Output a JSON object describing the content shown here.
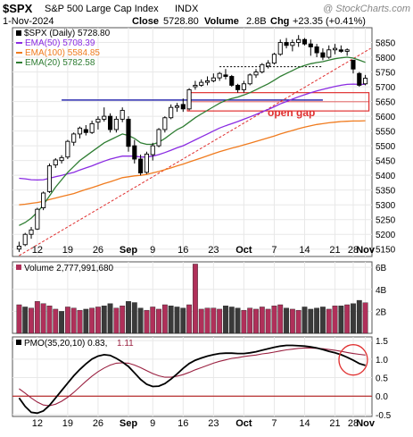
{
  "header": {
    "symbol": "$SPX",
    "name": "S&P 500 Large Cap Index",
    "exchange": "INDX",
    "watermark": "@ StockCharts.com",
    "date": "1-Nov-2024",
    "close_label": "Close",
    "close_value": "5728.80",
    "volume_label": "Volume",
    "volume_value": "2.8B",
    "chg_label": "Chg",
    "chg_value": "+23.35 (+0.41%)"
  },
  "legend": {
    "price": "$SPX (Daily) 5728.80",
    "ema50": "EMA(50) 5708.39",
    "ema100": "EMA(100) 5584.85",
    "ema20": "EMA(20) 5782.58"
  },
  "annotations": {
    "gap": "open gap"
  },
  "volume_panel": {
    "label": "Volume 2,777,991,680"
  },
  "pmo_panel": {
    "label": "PMO(35,20,10) 0.83,",
    "signal_value": "1.11"
  },
  "colors": {
    "up": "#000000",
    "down": "#000000",
    "candle_up_fill": "#ffffff",
    "candle_down_fill": "#000000",
    "ema20": "#2e7d32",
    "ema50": "#8a2be2",
    "ema100": "#f07b1e",
    "trend": "#e03030",
    "gap_box": "#e03030",
    "support": "#1a1aa8",
    "volume_bar": "#b0305a",
    "volume_bar_alt": "#3a3a3a",
    "pmo": "#000000",
    "pmo_signal": "#9a2040",
    "axis": "#666666",
    "grid": "#e8e8e8",
    "panel_bg": "#ffffff"
  },
  "chart_data": {
    "type": "candlestick",
    "x_tick_labels": [
      "12",
      "19",
      "26",
      "Sep",
      "9",
      "16",
      "23",
      "Oct",
      "7",
      "14",
      "21",
      "28",
      "Nov"
    ],
    "price_axis": {
      "ylim": [
        5125,
        5900
      ],
      "ticks": [
        5150,
        5200,
        5250,
        5300,
        5350,
        5400,
        5450,
        5500,
        5550,
        5600,
        5650,
        5700,
        5750,
        5800,
        5850
      ]
    },
    "volume_axis": {
      "ylim": [
        0,
        6.5
      ],
      "ticks": [
        "2B",
        "4B",
        "6B"
      ],
      "tick_values": [
        2,
        4,
        6
      ]
    },
    "pmo_axis": {
      "ylim": [
        -0.55,
        1.6
      ],
      "ticks": [
        "-0.5",
        "0.0",
        "0.5",
        "1.0",
        "1.5"
      ],
      "tick_values": [
        -0.5,
        0.0,
        0.5,
        1.0,
        1.5
      ]
    },
    "ohlc": [
      [
        5150,
        5175,
        5140,
        5160
      ],
      [
        5165,
        5205,
        5160,
        5200
      ],
      [
        5200,
        5225,
        5185,
        5215
      ],
      [
        5218,
        5290,
        5215,
        5285
      ],
      [
        5290,
        5345,
        5282,
        5340
      ],
      [
        5345,
        5440,
        5340,
        5432
      ],
      [
        5435,
        5458,
        5425,
        5452
      ],
      [
        5450,
        5468,
        5440,
        5460
      ],
      [
        5462,
        5520,
        5455,
        5515
      ],
      [
        5512,
        5545,
        5500,
        5540
      ],
      [
        5540,
        5565,
        5525,
        5560
      ],
      [
        5555,
        5570,
        5535,
        5545
      ],
      [
        5545,
        5585,
        5540,
        5575
      ],
      [
        5580,
        5600,
        5555,
        5590
      ],
      [
        5590,
        5630,
        5582,
        5600
      ],
      [
        5600,
        5610,
        5545,
        5555
      ],
      [
        5555,
        5600,
        5545,
        5590
      ],
      [
        5590,
        5630,
        5580,
        5620
      ],
      [
        5590,
        5600,
        5480,
        5498
      ],
      [
        5500,
        5520,
        5440,
        5455
      ],
      [
        5455,
        5470,
        5400,
        5408
      ],
      [
        5410,
        5480,
        5405,
        5472
      ],
      [
        5470,
        5510,
        5450,
        5500
      ],
      [
        5500,
        5560,
        5495,
        5555
      ],
      [
        5555,
        5600,
        5545,
        5595
      ],
      [
        5595,
        5640,
        5590,
        5630
      ],
      [
        5630,
        5645,
        5615,
        5635
      ],
      [
        5640,
        5660,
        5615,
        5625
      ],
      [
        5625,
        5695,
        5620,
        5690
      ],
      [
        5700,
        5720,
        5690,
        5705
      ],
      [
        5705,
        5725,
        5700,
        5715
      ],
      [
        5715,
        5735,
        5705,
        5720
      ],
      [
        5720,
        5745,
        5715,
        5730
      ],
      [
        5730,
        5750,
        5720,
        5745
      ],
      [
        5740,
        5760,
        5725,
        5735
      ],
      [
        5735,
        5740,
        5700,
        5705
      ],
      [
        5705,
        5710,
        5680,
        5690
      ],
      [
        5690,
        5720,
        5680,
        5710
      ],
      [
        5710,
        5745,
        5705,
        5740
      ],
      [
        5740,
        5760,
        5730,
        5750
      ],
      [
        5750,
        5780,
        5745,
        5775
      ],
      [
        5770,
        5790,
        5762,
        5780
      ],
      [
        5780,
        5815,
        5775,
        5810
      ],
      [
        5810,
        5860,
        5805,
        5850
      ],
      [
        5850,
        5865,
        5830,
        5840
      ],
      [
        5840,
        5860,
        5820,
        5850
      ],
      [
        5850,
        5875,
        5835,
        5860
      ],
      [
        5860,
        5865,
        5840,
        5845
      ],
      [
        5845,
        5860,
        5805,
        5835
      ],
      [
        5835,
        5845,
        5800,
        5815
      ],
      [
        5815,
        5830,
        5790,
        5800
      ],
      [
        5800,
        5840,
        5795,
        5825
      ],
      [
        5825,
        5845,
        5810,
        5830
      ],
      [
        5825,
        5840,
        5815,
        5820
      ],
      [
        5820,
        5830,
        5805,
        5825
      ],
      [
        5790,
        5790,
        5745,
        5760
      ],
      [
        5745,
        5750,
        5700,
        5705
      ],
      [
        5710,
        5740,
        5705,
        5728.8
      ]
    ],
    "ema20": [
      5230,
      5240,
      5255,
      5275,
      5300,
      5330,
      5360,
      5385,
      5410,
      5430,
      5450,
      5465,
      5480,
      5495,
      5510,
      5520,
      5530,
      5540,
      5535,
      5525,
      5510,
      5505,
      5505,
      5512,
      5525,
      5540,
      5555,
      5565,
      5580,
      5595,
      5608,
      5620,
      5632,
      5644,
      5654,
      5660,
      5665,
      5672,
      5680,
      5690,
      5700,
      5710,
      5722,
      5735,
      5745,
      5755,
      5765,
      5772,
      5778,
      5782,
      5785,
      5790,
      5795,
      5798,
      5800,
      5797,
      5790,
      5782.58
    ],
    "ema50": [
      5390,
      5388,
      5385,
      5384,
      5385,
      5390,
      5395,
      5400,
      5405,
      5410,
      5418,
      5425,
      5432,
      5440,
      5448,
      5455,
      5460,
      5465,
      5465,
      5465,
      5462,
      5462,
      5465,
      5470,
      5477,
      5485,
      5493,
      5500,
      5510,
      5520,
      5530,
      5540,
      5550,
      5560,
      5568,
      5575,
      5582,
      5590,
      5598,
      5606,
      5615,
      5623,
      5632,
      5642,
      5650,
      5658,
      5666,
      5673,
      5680,
      5686,
      5691,
      5696,
      5701,
      5705,
      5708,
      5709,
      5708,
      5708.39
    ],
    "ema100": [
      5300,
      5302,
      5305,
      5308,
      5312,
      5318,
      5323,
      5328,
      5333,
      5338,
      5345,
      5352,
      5358,
      5365,
      5372,
      5378,
      5385,
      5392,
      5395,
      5398,
      5400,
      5403,
      5408,
      5413,
      5419,
      5425,
      5432,
      5438,
      5445,
      5452,
      5459,
      5466,
      5473,
      5480,
      5486,
      5492,
      5497,
      5503,
      5509,
      5515,
      5521,
      5527,
      5533,
      5540,
      5546,
      5552,
      5558,
      5563,
      5568,
      5572,
      5575,
      5578,
      5580,
      5582,
      5583,
      5584,
      5584,
      5584.85
    ],
    "trendline": {
      "from": [
        0,
        5128
      ],
      "to": [
        57,
        5830
      ]
    },
    "support_line": {
      "from": [
        7,
        5655
      ],
      "to": [
        50,
        5655
      ]
    },
    "resistance_line": {
      "from": [
        33,
        5768
      ],
      "to": [
        50,
        5768
      ]
    },
    "gap_box": {
      "from_index": 28,
      "to_index": 57,
      "y1": 5618,
      "y2": 5680
    },
    "volume": [
      2.6,
      2.4,
      2.3,
      2.9,
      2.7,
      2.5,
      2.2,
      2.0,
      2.4,
      2.3,
      2.1,
      2.2,
      2.3,
      2.4,
      2.5,
      2.7,
      2.3,
      2.5,
      2.9,
      2.8,
      2.3,
      2.1,
      2.4,
      2.2,
      2.6,
      2.5,
      2.4,
      2.3,
      2.6,
      6.3,
      2.2,
      2.3,
      2.3,
      2.2,
      2.5,
      2.4,
      2.3,
      2.1,
      2.3,
      2.2,
      2.4,
      2.2,
      2.5,
      2.6,
      2.3,
      2.2,
      2.1,
      2.4,
      2.2,
      2.3,
      2.4,
      2.2,
      2.5,
      2.5,
      2.6,
      2.7,
      3.0,
      2.78
    ],
    "volume_up": [
      1,
      0,
      1,
      1,
      1,
      1,
      1,
      0,
      1,
      1,
      1,
      0,
      1,
      1,
      0,
      0,
      1,
      1,
      0,
      0,
      0,
      1,
      1,
      1,
      1,
      0,
      0,
      0,
      1,
      1,
      1,
      1,
      1,
      1,
      0,
      0,
      0,
      1,
      1,
      1,
      1,
      1,
      1,
      1,
      0,
      1,
      1,
      0,
      0,
      0,
      0,
      1,
      1,
      0,
      1,
      0,
      0,
      1
    ],
    "pmo": [
      -0.05,
      -0.28,
      -0.44,
      -0.46,
      -0.4,
      -0.25,
      -0.05,
      0.15,
      0.35,
      0.55,
      0.72,
      0.87,
      1.0,
      1.08,
      1.12,
      1.1,
      1.02,
      0.92,
      0.8,
      0.63,
      0.45,
      0.32,
      0.26,
      0.27,
      0.34,
      0.46,
      0.6,
      0.75,
      0.88,
      0.97,
      1.03,
      1.08,
      1.12,
      1.15,
      1.16,
      1.16,
      1.15,
      1.15,
      1.17,
      1.2,
      1.24,
      1.28,
      1.32,
      1.35,
      1.37,
      1.37,
      1.36,
      1.35,
      1.33,
      1.3,
      1.26,
      1.21,
      1.17,
      1.12,
      1.05,
      0.97,
      0.88,
      0.83
    ],
    "pmo_signal": [
      0.2,
      0.08,
      -0.05,
      -0.16,
      -0.24,
      -0.26,
      -0.22,
      -0.14,
      -0.03,
      0.1,
      0.25,
      0.4,
      0.54,
      0.66,
      0.76,
      0.84,
      0.89,
      0.9,
      0.89,
      0.84,
      0.77,
      0.69,
      0.61,
      0.55,
      0.51,
      0.51,
      0.54,
      0.58,
      0.64,
      0.71,
      0.77,
      0.83,
      0.89,
      0.94,
      0.98,
      1.02,
      1.04,
      1.07,
      1.09,
      1.11,
      1.14,
      1.16,
      1.19,
      1.22,
      1.25,
      1.27,
      1.29,
      1.3,
      1.3,
      1.29,
      1.28,
      1.26,
      1.24,
      1.21,
      1.18,
      1.15,
      1.13,
      1.11
    ]
  }
}
